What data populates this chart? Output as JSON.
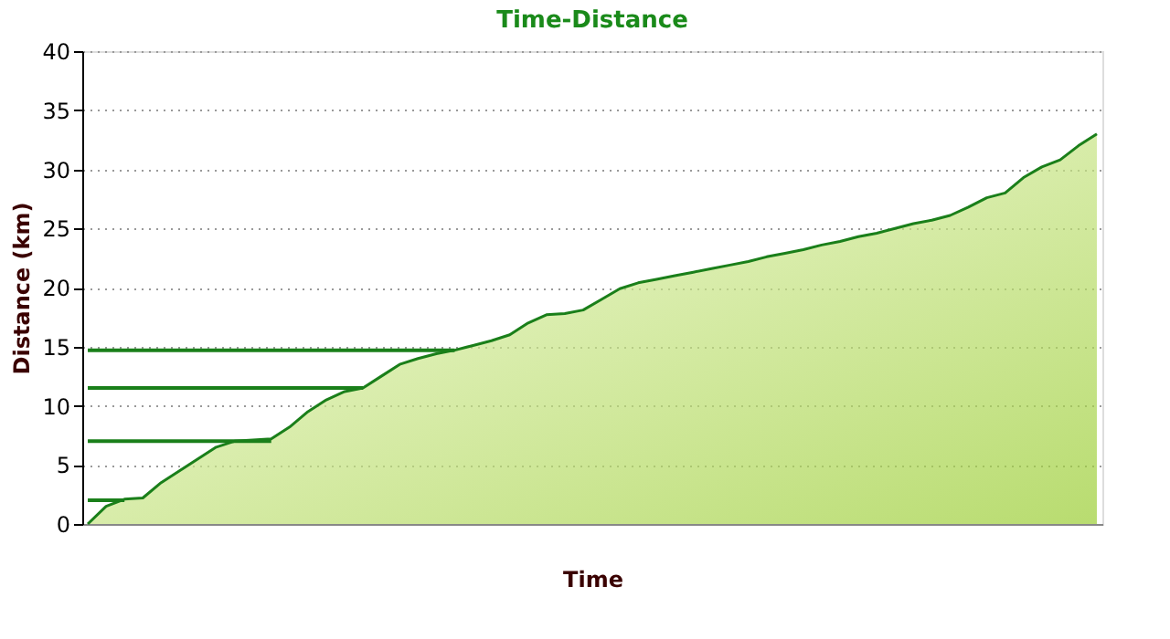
{
  "chart_data": {
    "type": "area",
    "title": "Time-Distance",
    "xlabel": "Time",
    "ylabel": "Distance (km)",
    "categories": [
      null,
      null,
      null,
      null,
      null,
      null,
      null,
      null,
      null,
      null,
      null,
      null,
      null,
      null,
      null,
      null,
      null,
      null,
      null,
      null,
      null,
      null,
      null,
      null,
      null,
      null,
      null,
      null,
      null,
      null,
      null,
      null,
      null,
      null,
      null,
      null,
      null,
      null,
      null,
      null,
      null,
      null,
      null,
      null,
      null,
      null,
      null,
      null,
      null,
      null,
      null,
      null,
      null,
      null,
      null,
      null
    ],
    "series": [
      {
        "color": "#1a7f1a",
        "values": [
          0,
          1.5,
          2.1,
          2.2,
          3.5,
          4.5,
          5.5,
          6.5,
          7,
          7.1,
          7.2,
          8.2,
          9.5,
          10.5,
          11.2,
          11.5,
          12.5,
          13.5,
          14,
          14.4,
          14.7,
          15.1,
          15.5,
          16,
          17,
          17.7,
          17.8,
          18.1,
          19,
          19.9,
          20.4,
          20.7,
          21,
          21.3,
          21.6,
          21.9,
          22.2,
          22.6,
          22.9,
          23.2,
          23.6,
          23.9,
          24.3,
          24.6,
          25,
          25.4,
          25.7,
          26.1,
          26.8,
          27.6,
          28,
          29.3,
          30.2,
          30.8,
          32,
          33
        ]
      },
      {
        "type": "line",
        "color": "#1a7f1a",
        "values": [
          2,
          2,
          2,
          null,
          null,
          null,
          null,
          null,
          null,
          null,
          null,
          null,
          null,
          null,
          null,
          null,
          null,
          null,
          null,
          null,
          null,
          null,
          null,
          null,
          null,
          null,
          null,
          null,
          null,
          null,
          null,
          null,
          null,
          null,
          null,
          null,
          null,
          null,
          null,
          null,
          null,
          null,
          null,
          null,
          null,
          null,
          null,
          null,
          null,
          null,
          null,
          null,
          null,
          null,
          null,
          null
        ]
      },
      {
        "type": "line",
        "color": "#1a7f1a",
        "values": [
          7,
          7,
          7,
          7,
          7,
          7,
          7,
          7,
          7,
          7,
          7,
          null,
          null,
          null,
          null,
          null,
          null,
          null,
          null,
          null,
          null,
          null,
          null,
          null,
          null,
          null,
          null,
          null,
          null,
          null,
          null,
          null,
          null,
          null,
          null,
          null,
          null,
          null,
          null,
          null,
          null,
          null,
          null,
          null,
          null,
          null,
          null,
          null,
          null,
          null,
          null,
          null,
          null,
          null,
          null,
          null
        ]
      },
      {
        "type": "line",
        "color": "#1a7f1a",
        "values": [
          11.5,
          11.5,
          11.5,
          11.5,
          11.5,
          11.5,
          11.5,
          11.5,
          11.5,
          11.5,
          11.5,
          11.5,
          11.5,
          11.5,
          11.5,
          11.5,
          null,
          null,
          null,
          null,
          null,
          null,
          null,
          null,
          null,
          null,
          null,
          null,
          null,
          null,
          null,
          null,
          null,
          null,
          null,
          null,
          null,
          null,
          null,
          null,
          null,
          null,
          null,
          null,
          null,
          null,
          null,
          null,
          null,
          null,
          null,
          null,
          null,
          null,
          null,
          null
        ]
      },
      {
        "type": "line",
        "color": "#1a7f1a",
        "values": [
          14.7,
          14.7,
          14.7,
          14.7,
          14.7,
          14.7,
          14.7,
          14.7,
          14.7,
          14.7,
          14.7,
          14.7,
          14.7,
          14.7,
          14.7,
          14.7,
          14.7,
          14.7,
          14.7,
          14.7,
          14.7,
          null,
          null,
          null,
          null,
          null,
          null,
          null,
          null,
          null,
          null,
          null,
          null,
          null,
          null,
          null,
          null,
          null,
          null,
          null,
          null,
          null,
          null,
          null,
          null,
          null,
          null,
          null,
          null,
          null,
          null,
          null,
          null,
          null,
          null,
          null
        ]
      }
    ],
    "ylim": [
      0,
      40
    ],
    "yticks": [
      0,
      5,
      10,
      15,
      20,
      25,
      30,
      35,
      40
    ],
    "grid": "y"
  }
}
